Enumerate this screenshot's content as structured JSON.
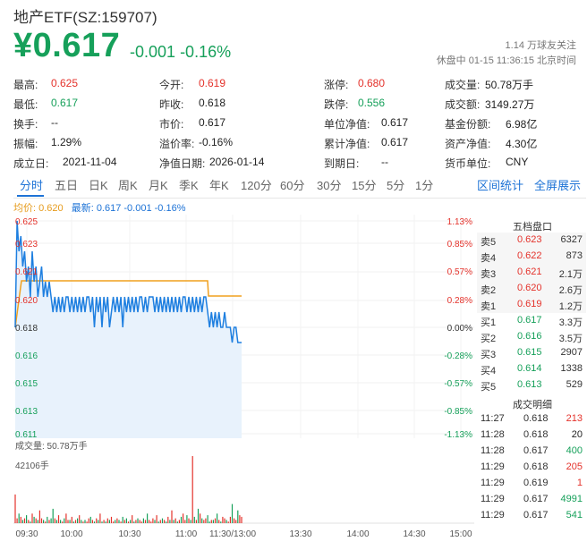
{
  "header": {
    "title": "地产ETF(SZ:159707)",
    "price": "¥0.617",
    "change": "-0.001",
    "change_pct": "-0.16%",
    "follow_count": "1.14 万球友关注",
    "status": "休盘中 01-15 11:36:15 北京时间"
  },
  "quote": [
    {
      "label": "最高:",
      "value": "0.625",
      "color": "red"
    },
    {
      "label": "今开:",
      "value": "0.619",
      "color": "red"
    },
    {
      "label": "涨停:",
      "value": "0.680",
      "color": "red"
    },
    {
      "label": "成交量:",
      "value": "50.78万手",
      "color": "dark"
    },
    {
      "label": "最低:",
      "value": "0.617",
      "color": "green"
    },
    {
      "label": "昨收:",
      "value": "0.618",
      "color": "dark"
    },
    {
      "label": "跌停:",
      "value": "0.556",
      "color": "green"
    },
    {
      "label": "成交额:",
      "value": "3149.27万",
      "color": "dark"
    },
    {
      "label": "换手:",
      "value": "--",
      "color": "dark"
    },
    {
      "label": "市价:",
      "value": "0.617",
      "color": "dark"
    },
    {
      "label": "单位净值:",
      "value": "0.617",
      "color": "dark"
    },
    {
      "label": "基金份额:",
      "value": "6.98亿",
      "color": "dark"
    },
    {
      "label": "振幅:",
      "value": "1.29%",
      "color": "dark"
    },
    {
      "label": "溢价率:",
      "value": "-0.16%",
      "color": "dark"
    },
    {
      "label": "累计净值:",
      "value": "0.617",
      "color": "dark"
    },
    {
      "label": "资产净值:",
      "value": "4.30亿",
      "color": "dark"
    },
    {
      "label": "成立日:",
      "value": "2021-11-04",
      "color": "dark"
    },
    {
      "label": "净值日期:",
      "value": "2026-01-14",
      "color": "dark"
    },
    {
      "label": "到期日:",
      "value": "--",
      "color": "dark"
    },
    {
      "label": "货币单位:",
      "value": "CNY",
      "color": "dark"
    }
  ],
  "tabs": [
    "分时",
    "五日",
    "日K",
    "周K",
    "月K",
    "季K",
    "年K",
    "120分",
    "60分",
    "30分",
    "15分",
    "5分",
    "1分"
  ],
  "tab_links": [
    "区间统计",
    "全屏展示"
  ],
  "legend": {
    "avg": "均价: 0.620",
    "latest": "最新: 0.617 -0.001 -0.16%"
  },
  "chart_data": {
    "type": "line",
    "y_ticks": [
      "0.625",
      "0.623",
      "0.621",
      "0.620",
      "0.618",
      "0.616",
      "0.615",
      "0.613",
      "0.611"
    ],
    "pct_ticks": [
      "1.13%",
      "0.85%",
      "0.57%",
      "0.28%",
      "0.00%",
      "-0.28%",
      "-0.57%",
      "-0.85%",
      "-1.13%"
    ],
    "x_ticks": [
      "09:30",
      "10:00",
      "10:30",
      "11:00",
      "11:30/13:00",
      "13:30",
      "14:00",
      "14:30",
      "15:00"
    ],
    "ylim": [
      0.611,
      0.625
    ],
    "prev_close": 0.618,
    "avg_price": [
      0.618,
      0.6215,
      0.6215,
      0.6215,
      0.6215,
      0.6215,
      0.6215,
      0.6215,
      0.6205,
      0.6205,
      0.6205
    ],
    "avg_time": [
      0,
      2,
      10,
      20,
      30,
      40,
      50,
      58,
      60,
      62,
      70
    ],
    "price_time": [
      0,
      1,
      2,
      3,
      4,
      5,
      6,
      7,
      8,
      9,
      10,
      11,
      12,
      13,
      14,
      15,
      16,
      17,
      18,
      19,
      20,
      21,
      22,
      23,
      24,
      25,
      26,
      27,
      28,
      29,
      30,
      31,
      32,
      33,
      34,
      35,
      36,
      37,
      38,
      39,
      40,
      41,
      42,
      43,
      44,
      45,
      46,
      47,
      48,
      49,
      50,
      51,
      52,
      53,
      54,
      55,
      56,
      57,
      58,
      59,
      60,
      61,
      62,
      63,
      64,
      65,
      66,
      67,
      68,
      69,
      70,
      71,
      72,
      73,
      74,
      75,
      76,
      77,
      78,
      79,
      80,
      81,
      82,
      83,
      84,
      85,
      86,
      87,
      88,
      89,
      90,
      91,
      92,
      93,
      94,
      95,
      96,
      97,
      98,
      99,
      100,
      101,
      102,
      103,
      104,
      105,
      106,
      107,
      108,
      109,
      110,
      111,
      112,
      113,
      114,
      115,
      116,
      117,
      118,
      119,
      120
    ],
    "price": [
      0.618,
      0.625,
      0.623,
      0.624,
      0.622,
      0.623,
      0.621,
      0.622,
      0.62,
      0.623,
      0.621,
      0.622,
      0.62,
      0.621,
      0.622,
      0.62,
      0.621,
      0.62,
      0.621,
      0.62,
      0.619,
      0.62,
      0.619,
      0.62,
      0.619,
      0.62,
      0.619,
      0.62,
      0.62,
      0.619,
      0.62,
      0.619,
      0.62,
      0.619,
      0.62,
      0.619,
      0.62,
      0.619,
      0.62,
      0.62,
      0.619,
      0.62,
      0.618,
      0.62,
      0.619,
      0.62,
      0.618,
      0.62,
      0.619,
      0.62,
      0.618,
      0.619,
      0.62,
      0.619,
      0.62,
      0.619,
      0.62,
      0.618,
      0.62,
      0.619,
      0.62,
      0.619,
      0.62,
      0.619,
      0.62,
      0.619,
      0.62,
      0.62,
      0.619,
      0.62,
      0.619,
      0.62,
      0.62,
      0.62,
      0.619,
      0.62,
      0.619,
      0.62,
      0.619,
      0.62,
      0.619,
      0.62,
      0.619,
      0.62,
      0.619,
      0.62,
      0.619,
      0.62,
      0.619,
      0.62,
      0.62,
      0.619,
      0.62,
      0.619,
      0.62,
      0.619,
      0.62,
      0.619,
      0.62,
      0.619,
      0.62,
      0.62,
      0.619,
      0.618,
      0.619,
      0.618,
      0.619,
      0.618,
      0.619,
      0.618,
      0.618,
      0.619,
      0.618,
      0.618,
      0.618,
      0.617,
      0.618,
      0.618,
      0.617,
      0.617,
      0.617
    ],
    "volume_label": "成交量: 50.78万手",
    "volume_max_label": "42106手",
    "volume": [
      18,
      3,
      6,
      4,
      2,
      3,
      5,
      2,
      1,
      6,
      4,
      3,
      2,
      8,
      3,
      2,
      1,
      4,
      2,
      3,
      9,
      3,
      2,
      5,
      2,
      1,
      3,
      6,
      2,
      2,
      4,
      1,
      2,
      3,
      5,
      2,
      1,
      2,
      1,
      3,
      4,
      2,
      1,
      3,
      2,
      6,
      1,
      2,
      1,
      3,
      2,
      4,
      1,
      2,
      3,
      2,
      1,
      4,
      2,
      3,
      1,
      2,
      5,
      1,
      2,
      3,
      2,
      1,
      3,
      2,
      6,
      2,
      1,
      3,
      2,
      5,
      1,
      2,
      3,
      2,
      1,
      4,
      2,
      8,
      2,
      3,
      1,
      2,
      4,
      6,
      2,
      5,
      3,
      2,
      42,
      4,
      2,
      9,
      6,
      3,
      2,
      3,
      5,
      1,
      2,
      2,
      3,
      6,
      2,
      1,
      4,
      3,
      2,
      1,
      4,
      12,
      3,
      2,
      8,
      5,
      4
    ]
  },
  "order_book": {
    "title": "五档盘口",
    "rows": [
      {
        "label": "卖5",
        "price": "0.623",
        "vol": "6327",
        "pcolor": "red"
      },
      {
        "label": "卖4",
        "price": "0.622",
        "vol": "873",
        "pcolor": "red"
      },
      {
        "label": "卖3",
        "price": "0.621",
        "vol": "2.1万",
        "pcolor": "red"
      },
      {
        "label": "卖2",
        "price": "0.620",
        "vol": "2.6万",
        "pcolor": "red"
      },
      {
        "label": "卖1",
        "price": "0.619",
        "vol": "1.2万",
        "pcolor": "red"
      },
      {
        "label": "买1",
        "price": "0.617",
        "vol": "3.3万",
        "pcolor": "green"
      },
      {
        "label": "买2",
        "price": "0.616",
        "vol": "3.5万",
        "pcolor": "green"
      },
      {
        "label": "买3",
        "price": "0.615",
        "vol": "2907",
        "pcolor": "green"
      },
      {
        "label": "买4",
        "price": "0.614",
        "vol": "1338",
        "pcolor": "green"
      },
      {
        "label": "买5",
        "price": "0.613",
        "vol": "529",
        "pcolor": "green"
      }
    ]
  },
  "trades": {
    "title": "成交明细",
    "rows": [
      {
        "time": "11:27",
        "price": "0.618",
        "vol": "213",
        "vcolor": "red"
      },
      {
        "time": "11:28",
        "price": "0.618",
        "vol": "20",
        "vcolor": "dark"
      },
      {
        "time": "11:28",
        "price": "0.617",
        "vol": "400",
        "vcolor": "green"
      },
      {
        "time": "11:29",
        "price": "0.618",
        "vol": "205",
        "vcolor": "red"
      },
      {
        "time": "11:29",
        "price": "0.619",
        "vol": "1",
        "vcolor": "red"
      },
      {
        "time": "11:29",
        "price": "0.617",
        "vol": "4991",
        "vcolor": "green"
      },
      {
        "time": "11:29",
        "price": "0.617",
        "vol": "541",
        "vcolor": "green"
      }
    ]
  }
}
